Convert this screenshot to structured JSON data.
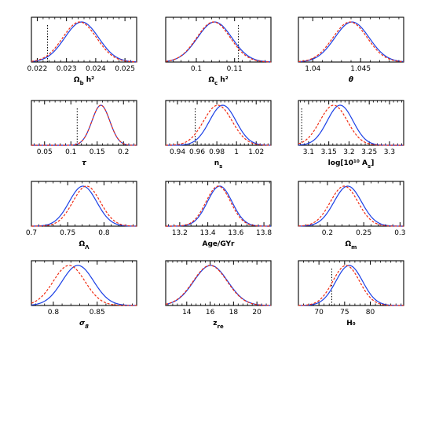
{
  "colors": {
    "solid_curve": "#1a3fe6",
    "dashed_curve": "#f02a10",
    "vertical_marker": "#000000",
    "frame": "#000000"
  },
  "chart_data": [
    {
      "type": "line",
      "xlabel": "Ω_b h²",
      "xlim": [
        0.0218,
        0.0254
      ],
      "xticks": [
        0.022,
        0.023,
        0.024,
        0.025
      ],
      "tick_labels": [
        "0.022",
        "0.023",
        "0.024",
        "0.025"
      ],
      "series": [
        {
          "style": "solid",
          "mean": 0.02352,
          "sd": 0.00058
        },
        {
          "style": "dashed",
          "mean": 0.02345,
          "sd": 0.00058
        }
      ],
      "vline": 0.02235
    },
    {
      "type": "line",
      "xlabel": "Ω_c h²",
      "xlim": [
        0.092,
        0.1195
      ],
      "xticks": [
        0.1,
        0.11
      ],
      "tick_labels": [
        "0.1",
        "0.11"
      ],
      "series": [
        {
          "style": "solid",
          "mean": 0.1048,
          "sd": 0.0045
        },
        {
          "style": "dashed",
          "mean": 0.1045,
          "sd": 0.0044
        }
      ],
      "vline": 0.111
    },
    {
      "type": "line",
      "xlabel": "θ",
      "xlim": [
        1.0385,
        1.0495
      ],
      "xticks": [
        1.04,
        1.045
      ],
      "tick_labels": [
        "1.04",
        "1.045"
      ],
      "series": [
        {
          "style": "solid",
          "mean": 1.0441,
          "sd": 0.0018
        },
        {
          "style": "dashed",
          "mean": 1.0439,
          "sd": 0.0018
        }
      ],
      "vline": null
    },
    {
      "type": "line",
      "xlabel": "τ",
      "xlim": [
        0.025,
        0.225
      ],
      "xticks": [
        0.05,
        0.1,
        0.15,
        0.2
      ],
      "tick_labels": [
        "0.05",
        "0.1",
        "0.15",
        "0.2"
      ],
      "series": [
        {
          "style": "solid",
          "mean": 0.157,
          "sd": 0.017
        },
        {
          "style": "dashed",
          "mean": 0.157,
          "sd": 0.017
        }
      ],
      "vline": 0.112
    },
    {
      "type": "line",
      "xlabel": "n_s",
      "xlim": [
        0.928,
        1.035
      ],
      "xticks": [
        0.94,
        0.96,
        0.98,
        1,
        1.02
      ],
      "tick_labels": [
        "0.94",
        "0.96",
        "0.98",
        "1",
        "1.02"
      ],
      "series": [
        {
          "style": "solid",
          "mean": 0.986,
          "sd": 0.0135
        },
        {
          "style": "dashed",
          "mean": 0.981,
          "sd": 0.0145
        }
      ],
      "vline": 0.958
    },
    {
      "type": "line",
      "xlabel": "log[10¹⁰ A_s]",
      "xlim": [
        3.075,
        3.335
      ],
      "xticks": [
        3.1,
        3.15,
        3.2,
        3.25,
        3.3
      ],
      "tick_labels": [
        "3.1",
        "3.15",
        "3.2",
        "3.25",
        "3.3"
      ],
      "series": [
        {
          "style": "solid",
          "mean": 3.178,
          "sd": 0.032
        },
        {
          "style": "dashed",
          "mean": 3.162,
          "sd": 0.034
        }
      ],
      "vline": 3.083
    },
    {
      "type": "line",
      "xlabel": "Ω_Λ",
      "xlim": [
        0.7,
        0.845
      ],
      "xticks": [
        0.7,
        0.75,
        0.8
      ],
      "tick_labels": [
        "0.7",
        "0.75",
        "0.8"
      ],
      "series": [
        {
          "style": "solid",
          "mean": 0.771,
          "sd": 0.019
        },
        {
          "style": "dashed",
          "mean": 0.776,
          "sd": 0.019
        }
      ],
      "vline": null
    },
    {
      "type": "line",
      "xlabel": "Age/GYr",
      "xlim": [
        13.1,
        13.85
      ],
      "xticks": [
        13.2,
        13.4,
        13.6,
        13.8
      ],
      "tick_labels": [
        "13.2",
        "13.4",
        "13.6",
        "13.8"
      ],
      "series": [
        {
          "style": "solid",
          "mean": 13.485,
          "sd": 0.088
        },
        {
          "style": "dashed",
          "mean": 13.475,
          "sd": 0.088
        }
      ],
      "vline": null
    },
    {
      "type": "line",
      "xlabel": "Ω_m",
      "xlim": [
        0.16,
        0.305
      ],
      "xticks": [
        0.2,
        0.25,
        0.3
      ],
      "tick_labels": [
        "0.2",
        "0.25",
        "0.3"
      ],
      "series": [
        {
          "style": "solid",
          "mean": 0.228,
          "sd": 0.019
        },
        {
          "style": "dashed",
          "mean": 0.223,
          "sd": 0.019
        }
      ],
      "vline": null
    },
    {
      "type": "line",
      "xlabel": "σ_8",
      "xlim": [
        0.775,
        0.895
      ],
      "xticks": [
        0.8,
        0.85
      ],
      "tick_labels": [
        "0.8",
        "0.85"
      ],
      "series": [
        {
          "style": "solid",
          "mean": 0.828,
          "sd": 0.018
        },
        {
          "style": "dashed",
          "mean": 0.818,
          "sd": 0.018
        }
      ],
      "vline": null
    },
    {
      "type": "line",
      "xlabel": "z_re",
      "xlim": [
        12.2,
        21.2
      ],
      "xticks": [
        14,
        16,
        18,
        20
      ],
      "tick_labels": [
        "14",
        "16",
        "18",
        "20"
      ],
      "series": [
        {
          "style": "solid",
          "mean": 16.05,
          "sd": 1.45
        },
        {
          "style": "dashed",
          "mean": 16.0,
          "sd": 1.45
        }
      ],
      "vline": null
    },
    {
      "type": "line",
      "xlabel": "H₀",
      "xlim": [
        66.0,
        86.5
      ],
      "xticks": [
        70,
        75,
        80
      ],
      "tick_labels": [
        "70",
        "75",
        "80"
      ],
      "series": [
        {
          "style": "solid",
          "mean": 75.9,
          "sd": 2.6
        },
        {
          "style": "dashed",
          "mean": 75.3,
          "sd": 2.6
        }
      ],
      "vline": 72.5
    }
  ]
}
